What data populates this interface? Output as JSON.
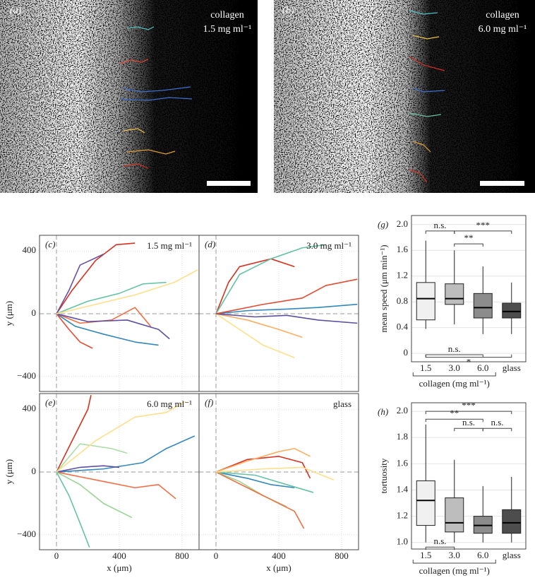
{
  "images": [
    {
      "label": "(a)",
      "title": "collagen",
      "subtitle": "1.5 mg ml⁻¹"
    },
    {
      "label": "(b)",
      "title": "collagen",
      "subtitle": "6.0 mg ml⁻¹"
    }
  ],
  "chart_data": [
    {
      "type": "line",
      "label": "(c)",
      "annotation": "1.5 mg ml⁻¹",
      "ylabel": "y (μm)",
      "xlim": [
        -108,
        908
      ],
      "ylim": [
        -495,
        500
      ],
      "xticks": [
        0,
        400,
        800
      ],
      "yticks": [
        {
          "value": -400,
          "label": "−400"
        },
        0,
        400
      ],
      "grid": true,
      "series": [
        {
          "color": "#d7301f",
          "x": [
            0,
            100,
            250,
            380,
            500
          ],
          "y": [
            0,
            150,
            340,
            440,
            450
          ]
        },
        {
          "color": "#6a51a3",
          "x": [
            0,
            80,
            150,
            300
          ],
          "y": [
            0,
            150,
            310,
            380
          ]
        },
        {
          "color": "#66c2a5",
          "x": [
            0,
            200,
            400,
            550,
            700
          ],
          "y": [
            0,
            80,
            130,
            190,
            200
          ]
        },
        {
          "color": "#f46d43",
          "x": [
            0,
            150,
            350,
            500,
            600
          ],
          "y": [
            0,
            -60,
            -40,
            40,
            -80
          ]
        },
        {
          "color": "#3288bd",
          "x": [
            0,
            120,
            300,
            500,
            650
          ],
          "y": [
            0,
            -80,
            -130,
            -180,
            -200
          ]
        },
        {
          "color": "#5e4fa2",
          "x": [
            0,
            200,
            450,
            650,
            720
          ],
          "y": [
            0,
            -50,
            -40,
            -100,
            -160
          ]
        },
        {
          "color": "#e34a33",
          "x": [
            0,
            80,
            150,
            230
          ],
          "y": [
            0,
            -100,
            -180,
            -220
          ]
        },
        {
          "color": "#fee08b",
          "x": [
            0,
            250,
            500,
            750,
            900
          ],
          "y": [
            0,
            60,
            120,
            200,
            280
          ]
        }
      ]
    },
    {
      "type": "line",
      "label": "(d)",
      "annotation": "3.0 mg ml⁻¹",
      "xlim": [
        -108,
        908
      ],
      "ylim": [
        -495,
        500
      ],
      "xticks": [
        0,
        400,
        800
      ],
      "yticks": [
        {
          "value": -400,
          "label": "−400"
        },
        0,
        400
      ],
      "grid": true,
      "series": [
        {
          "color": "#d7301f",
          "x": [
            0,
            80,
            150,
            350,
            500
          ],
          "y": [
            0,
            200,
            300,
            350,
            300
          ]
        },
        {
          "color": "#66c2a5",
          "x": [
            0,
            150,
            350,
            550,
            700
          ],
          "y": [
            0,
            250,
            350,
            420,
            440
          ]
        },
        {
          "color": "#3288bd",
          "x": [
            0,
            200,
            450,
            650,
            900
          ],
          "y": [
            0,
            20,
            30,
            40,
            60
          ]
        },
        {
          "color": "#fdae61",
          "x": [
            0,
            200,
            400,
            550
          ],
          "y": [
            0,
            -40,
            -100,
            -150
          ]
        },
        {
          "color": "#fee08b",
          "x": [
            0,
            150,
            300,
            500
          ],
          "y": [
            0,
            -100,
            -200,
            -280
          ]
        },
        {
          "color": "#5e4fa2",
          "x": [
            0,
            250,
            450,
            650,
            900
          ],
          "y": [
            0,
            -20,
            -10,
            -40,
            -60
          ]
        },
        {
          "color": "#e34a33",
          "x": [
            0,
            300,
            550,
            700,
            900
          ],
          "y": [
            0,
            60,
            100,
            180,
            220
          ]
        }
      ]
    },
    {
      "type": "line",
      "label": "(e)",
      "annotation": "6.0 mg ml⁻¹",
      "xlabel": "x (μm)",
      "ylabel": "y (μm)",
      "xlim": [
        -108,
        908
      ],
      "ylim": [
        -495,
        500
      ],
      "xticks": [
        0,
        400,
        800
      ],
      "yticks": [
        {
          "value": -400,
          "label": "−400"
        },
        0,
        400
      ],
      "grid": true,
      "series": [
        {
          "color": "#d7301f",
          "x": [
            0,
            100,
            200,
            220
          ],
          "y": [
            0,
            200,
            400,
            490
          ]
        },
        {
          "color": "#66c2a5",
          "x": [
            0,
            80,
            160,
            210
          ],
          "y": [
            0,
            -150,
            -350,
            -480
          ]
        },
        {
          "color": "#3288bd",
          "x": [
            0,
            300,
            550,
            700,
            880
          ],
          "y": [
            0,
            20,
            60,
            150,
            230
          ]
        },
        {
          "color": "#abdda4",
          "x": [
            0,
            150,
            350,
            450
          ],
          "y": [
            0,
            180,
            150,
            120
          ]
        },
        {
          "color": "#f46d43",
          "x": [
            0,
            250,
            500,
            650,
            760
          ],
          "y": [
            0,
            -50,
            -100,
            -80,
            -170
          ]
        },
        {
          "color": "#5e4fa2",
          "x": [
            0,
            150,
            300,
            400
          ],
          "y": [
            0,
            30,
            40,
            30
          ]
        },
        {
          "color": "#fee08b",
          "x": [
            0,
            250,
            500,
            700,
            820
          ],
          "y": [
            0,
            200,
            350,
            380,
            450
          ]
        },
        {
          "color": "#99d594",
          "x": [
            0,
            150,
            300,
            480
          ],
          "y": [
            0,
            -80,
            -200,
            -290
          ]
        }
      ]
    },
    {
      "type": "line",
      "label": "(f)",
      "annotation": "glass",
      "xlabel": "x (μm)",
      "xlim": [
        -108,
        908
      ],
      "ylim": [
        -495,
        500
      ],
      "xticks": [
        0,
        400,
        800
      ],
      "yticks": [
        {
          "value": -400,
          "label": "−400"
        },
        0,
        400
      ],
      "grid": true,
      "series": [
        {
          "color": "#d7301f",
          "x": [
            0,
            200,
            400,
            550,
            600
          ],
          "y": [
            0,
            80,
            100,
            60,
            -40
          ]
        },
        {
          "color": "#fdae61",
          "x": [
            0,
            200,
            400,
            500,
            600
          ],
          "y": [
            0,
            70,
            130,
            150,
            100
          ]
        },
        {
          "color": "#3288bd",
          "x": [
            0,
            200,
            350,
            500
          ],
          "y": [
            0,
            -40,
            -80,
            -100
          ]
        },
        {
          "color": "#99d594",
          "x": [
            0,
            150,
            300,
            450
          ],
          "y": [
            0,
            -60,
            -150,
            -220
          ]
        },
        {
          "color": "#66c2a5",
          "x": [
            0,
            250,
            450,
            620
          ],
          "y": [
            0,
            -20,
            -80,
            -130
          ]
        },
        {
          "color": "#f46d43",
          "x": [
            0,
            300,
            500,
            560
          ],
          "y": [
            0,
            -150,
            -250,
            -360
          ]
        },
        {
          "color": "#fee08b",
          "x": [
            0,
            300,
            550,
            750
          ],
          "y": [
            0,
            20,
            30,
            -50
          ]
        }
      ]
    },
    {
      "type": "box",
      "label": "(g)",
      "ylabel": "mean speed (μm min⁻¹)",
      "group_label": "collagen (mg ml⁻¹)",
      "categories": [
        "1.5",
        "3.0",
        "6.0",
        "glass"
      ],
      "colors": [
        "#f0f0f0",
        "#bdbdbd",
        "#8c8c8c",
        "#4d4d4d"
      ],
      "ylim": [
        -0.13,
        2.14
      ],
      "yticks": [
        0,
        0.4,
        0.8,
        1.2,
        1.6,
        {
          "value": 2,
          "label": "2.0"
        }
      ],
      "grid": true,
      "boxes": [
        {
          "low": 0.38,
          "q1": 0.52,
          "median": 0.85,
          "q3": 1.1,
          "high": 1.75
        },
        {
          "low": 0.45,
          "q1": 0.76,
          "median": 0.85,
          "q3": 1.08,
          "high": 1.6
        },
        {
          "low": 0.3,
          "q1": 0.55,
          "median": 0.71,
          "q3": 0.93,
          "high": 1.35
        },
        {
          "low": 0.3,
          "q1": 0.55,
          "median": 0.65,
          "q3": 0.78,
          "high": 1.1
        }
      ],
      "annotations": [
        {
          "text": "n.s.",
          "from": 0,
          "to": 1,
          "y": 1.9
        },
        {
          "text": "***",
          "from": 1,
          "to": 3,
          "y": 1.9
        },
        {
          "text": "**",
          "from": 1,
          "to": 2,
          "y": 1.7
        },
        {
          "text": "n.s.",
          "from": 0,
          "to": 2,
          "y": -0.02
        },
        {
          "text": "*",
          "from": 0,
          "to": 3,
          "y": -0.06,
          "text_below": true
        }
      ]
    },
    {
      "type": "box",
      "label": "(h)",
      "ylabel": "tortuosity",
      "group_label": "collagen (mg ml⁻¹)",
      "categories": [
        "1.5",
        "3.0",
        "6.0",
        "glass"
      ],
      "colors": [
        "#f0f0f0",
        "#bdbdbd",
        "#8c8c8c",
        "#4d4d4d"
      ],
      "ylim": [
        0.95,
        2.065
      ],
      "yticks": [
        {
          "value": 1,
          "label": "1.0"
        },
        1.2,
        1.4,
        1.6,
        1.8,
        {
          "value": 2,
          "label": "2.0"
        }
      ],
      "grid": true,
      "boxes": [
        {
          "low": 1.0,
          "q1": 1.13,
          "median": 1.32,
          "q3": 1.47,
          "high": 1.9
        },
        {
          "low": 1.0,
          "q1": 1.08,
          "median": 1.15,
          "q3": 1.34,
          "high": 1.63
        },
        {
          "low": 1.0,
          "q1": 1.07,
          "median": 1.13,
          "q3": 1.2,
          "high": 1.43
        },
        {
          "low": 1.0,
          "q1": 1.07,
          "median": 1.15,
          "q3": 1.25,
          "high": 1.5
        }
      ],
      "annotations": [
        {
          "text": "***",
          "from": 0,
          "to": 3,
          "y": 2.0
        },
        {
          "text": "**",
          "from": 0,
          "to": 2,
          "y": 1.94
        },
        {
          "text": "n.s.",
          "from": 1,
          "to": 2,
          "y": 1.87
        },
        {
          "text": "n.s.",
          "from": 2,
          "to": 3,
          "y": 1.87
        },
        {
          "text": "n.s.",
          "from": 0,
          "to": 1,
          "y": 0.965
        }
      ]
    }
  ]
}
